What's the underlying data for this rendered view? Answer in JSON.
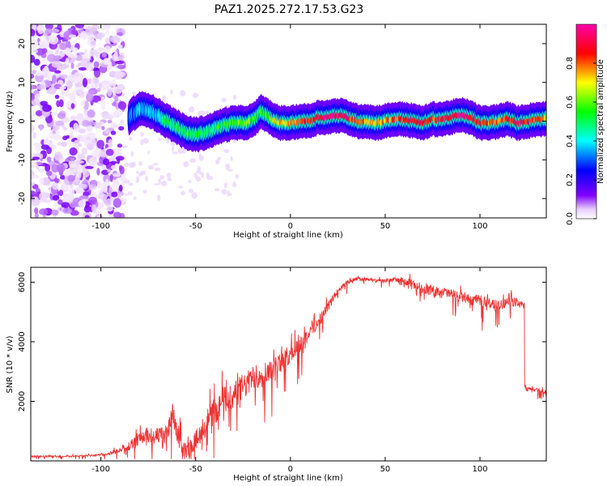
{
  "title": "PAZ1.2025.272.17.53.G23",
  "chart_data": [
    {
      "type": "heatmap",
      "xlabel": "Height of straight line (km)",
      "ylabel": "Frequency (Hz)",
      "xlim": [
        -137,
        135
      ],
      "ylim": [
        -25,
        25
      ],
      "xticks": [
        -100,
        -50,
        0,
        50,
        100
      ],
      "xtick_labels": [
        "-100",
        "-50",
        "0",
        "50",
        "100"
      ],
      "yticks": [
        -20,
        -10,
        0,
        10,
        20
      ],
      "ytick_labels": [
        "-20",
        "-10",
        "0",
        "10",
        "20"
      ],
      "colorbar": {
        "label": "Normalized spectral amplitude",
        "range": [
          0,
          1
        ],
        "ticks": [
          0,
          0.2,
          0.4,
          0.6,
          0.8
        ],
        "tick_labels": [
          "0.0",
          "0.2",
          "0.4",
          "0.6",
          "0.8"
        ],
        "colors": [
          "#ffffff",
          "#e6ccff",
          "#8000ff",
          "#0000ff",
          "#00ffff",
          "#00ff00",
          "#ffff00",
          "#ff0000",
          "#ff00aa"
        ]
      },
      "ridge": {
        "x": [
          -85,
          -80,
          -75,
          -70,
          -65,
          -60,
          -55,
          -50,
          -45,
          -40,
          -35,
          -30,
          -25,
          -20,
          -15,
          -10,
          -5,
          0,
          5,
          10,
          15,
          20,
          25,
          30,
          35,
          40,
          45,
          50,
          55,
          60,
          65,
          70,
          75,
          80,
          85,
          90,
          95,
          100,
          105,
          110,
          115,
          120,
          125,
          130,
          135
        ],
        "y": [
          1,
          3,
          3,
          1.5,
          0,
          -1.5,
          -3,
          -3.5,
          -3,
          -2,
          -1,
          -0.5,
          -0.5,
          0,
          2.5,
          0.5,
          -0.5,
          -0.5,
          0,
          0,
          1,
          1,
          1.5,
          1,
          0,
          0,
          -0.5,
          0,
          0.5,
          0.5,
          0,
          -0.5,
          0.5,
          0.5,
          1,
          1.5,
          1,
          -0.5,
          -0.5,
          0,
          0.5,
          -0.5,
          0,
          0.5,
          0.5
        ],
        "amplitude": [
          0.3,
          0.35,
          0.35,
          0.4,
          0.5,
          0.5,
          0.55,
          0.55,
          0.5,
          0.5,
          0.55,
          0.6,
          0.6,
          0.6,
          0.55,
          0.65,
          0.7,
          0.75,
          0.8,
          0.85,
          0.9,
          0.95,
          0.95,
          0.9,
          0.8,
          0.75,
          0.7,
          0.75,
          0.8,
          0.85,
          0.9,
          0.85,
          0.8,
          0.85,
          0.9,
          0.95,
          0.9,
          0.85,
          0.8,
          0.8,
          0.85,
          0.9,
          0.85,
          0.8,
          0.75
        ]
      },
      "noise_region_xlim": [
        -137,
        -88
      ]
    },
    {
      "type": "line",
      "xlabel": "Height of straight line (km)",
      "ylabel": "SNR (10 * v/v)",
      "xlim": [
        -137,
        135
      ],
      "ylim": [
        0,
        6500
      ],
      "xticks": [
        -100,
        -50,
        0,
        50,
        100
      ],
      "xtick_labels": [
        "-100",
        "-50",
        "0",
        "50",
        "100"
      ],
      "yticks": [
        2000,
        4000,
        6000
      ],
      "ytick_labels": [
        "2000",
        "4000",
        "6000"
      ],
      "series": [
        {
          "color": "#ee3333",
          "x": [
            -137,
            -120,
            -110,
            -100,
            -95,
            -90,
            -85,
            -80,
            -75,
            -70,
            -65,
            -62,
            -60,
            -57,
            -55,
            -50,
            -45,
            -40,
            -35,
            -30,
            -25,
            -20,
            -15,
            -10,
            -5,
            0,
            5,
            10,
            15,
            20,
            25,
            30,
            35,
            40,
            45,
            50,
            55,
            60,
            65,
            70,
            75,
            80,
            85,
            90,
            95,
            100,
            105,
            110,
            115,
            120,
            123,
            124,
            125,
            130,
            135
          ],
          "y": [
            150,
            150,
            170,
            200,
            250,
            350,
            500,
            700,
            900,
            800,
            900,
            1500,
            1000,
            500,
            300,
            700,
            1200,
            1700,
            2000,
            2200,
            2500,
            2700,
            2900,
            3100,
            3300,
            3600,
            3900,
            4300,
            4700,
            5200,
            5700,
            6000,
            6100,
            6100,
            6050,
            6050,
            6100,
            6000,
            5900,
            5800,
            5700,
            5700,
            5600,
            5500,
            5400,
            5400,
            5300,
            5200,
            5400,
            5300,
            5200,
            2500,
            2400,
            2400,
            2300
          ],
          "spread": [
            40,
            40,
            40,
            50,
            80,
            120,
            200,
            300,
            400,
            450,
            450,
            700,
            600,
            400,
            300,
            450,
            600,
            700,
            750,
            700,
            650,
            600,
            600,
            550,
            500,
            450,
            400,
            350,
            300,
            250,
            150,
            120,
            100,
            80,
            80,
            80,
            100,
            250,
            250,
            250,
            250,
            200,
            250,
            250,
            250,
            250,
            250,
            250,
            250,
            200,
            150,
            120,
            120,
            100,
            100
          ]
        }
      ]
    }
  ]
}
